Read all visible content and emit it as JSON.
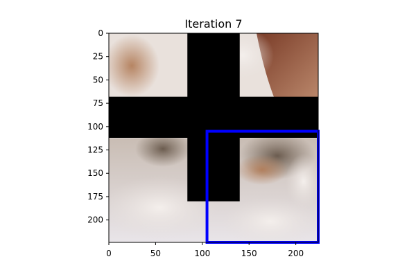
{
  "chart_data": {
    "type": "image",
    "title": "Iteration 7",
    "xlabel": "",
    "ylabel": "",
    "xlim": [
      0,
      224
    ],
    "ylim": [
      224,
      0
    ],
    "xticks": [
      0,
      50,
      100,
      150,
      200
    ],
    "yticks": [
      0,
      25,
      50,
      75,
      100,
      125,
      150,
      175,
      200
    ],
    "image_content": "close-up photo of a sleeping cat on a fluffy white blanket",
    "masked_regions": [
      {
        "name": "vertical-bar",
        "x0": 84,
        "x1": 140,
        "y0": 0,
        "y1": 180
      },
      {
        "name": "horizontal-bar",
        "x0": 0,
        "x1": 224,
        "y0": 68,
        "y1": 112
      }
    ],
    "highlight_box": {
      "x0": 105,
      "x1": 224,
      "y0": 105,
      "y1": 224,
      "color": "#0000ff"
    },
    "colors": {
      "mask": "#000000",
      "box": "#0000ff",
      "axis": "#000000"
    }
  }
}
